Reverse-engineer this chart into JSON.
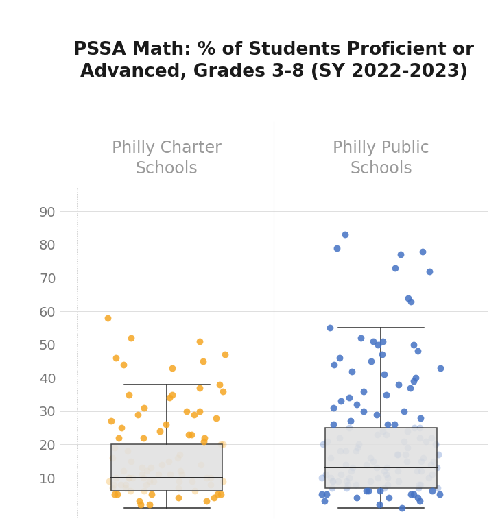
{
  "title_line1": "PSSA Math: % of Students Proficient or",
  "title_line2": "Advanced, Grades 3-8 (SY 2022-2023)",
  "col_labels": [
    "Philly Charter\nSchools",
    "Philly Public\nSchools"
  ],
  "charter_color": "#F5A623",
  "public_color": "#4472C4",
  "charter_box": {
    "q1": 6,
    "median": 10,
    "q3": 20,
    "whisker_low": 1,
    "whisker_high": 38
  },
  "public_box": {
    "q1": 7,
    "median": 13,
    "q3": 25,
    "whisker_low": 1,
    "whisker_high": 55
  },
  "ylim": [
    -2,
    97
  ],
  "yticks": [
    10,
    20,
    30,
    40,
    50,
    60,
    70,
    80,
    90
  ],
  "background": "#ffffff",
  "title_fontsize": 19,
  "label_fontsize": 17,
  "tick_fontsize": 14,
  "charter_data": [
    5,
    5,
    6,
    7,
    7,
    8,
    8,
    8,
    9,
    9,
    9,
    9,
    10,
    10,
    10,
    10,
    10,
    11,
    11,
    11,
    12,
    12,
    13,
    13,
    14,
    14,
    15,
    15,
    16,
    16,
    17,
    18,
    19,
    20,
    20,
    21,
    22,
    22,
    23,
    24,
    25,
    26,
    27,
    28,
    29,
    30,
    31,
    34,
    35,
    35,
    36,
    37,
    38,
    4,
    4,
    5,
    5,
    6,
    7,
    8,
    9,
    3,
    3,
    2,
    2,
    43,
    44,
    45,
    46,
    47,
    51,
    52,
    58,
    22,
    23,
    29,
    30,
    10,
    9,
    8,
    10,
    11,
    12,
    5,
    6
  ],
  "public_data": [
    1,
    2,
    3,
    3,
    4,
    4,
    4,
    5,
    5,
    5,
    5,
    5,
    6,
    6,
    6,
    6,
    7,
    7,
    7,
    7,
    7,
    8,
    8,
    8,
    8,
    8,
    9,
    9,
    9,
    9,
    9,
    9,
    10,
    10,
    10,
    10,
    10,
    10,
    11,
    11,
    11,
    11,
    12,
    12,
    12,
    12,
    12,
    13,
    13,
    13,
    13,
    14,
    14,
    14,
    15,
    15,
    15,
    15,
    16,
    16,
    16,
    17,
    17,
    17,
    17,
    18,
    18,
    18,
    19,
    19,
    20,
    20,
    20,
    21,
    21,
    21,
    22,
    22,
    22,
    23,
    23,
    24,
    24,
    25,
    25,
    26,
    26,
    27,
    28,
    29,
    30,
    30,
    31,
    32,
    33,
    34,
    35,
    36,
    37,
    38,
    39,
    40,
    41,
    42,
    43,
    44,
    45,
    46,
    47,
    48,
    50,
    51,
    52,
    55,
    64,
    63,
    73,
    72,
    79,
    83,
    78,
    77,
    51,
    50,
    25,
    26
  ],
  "grid_color": "#DEDEDE",
  "box_fill": "#E0E0E0",
  "box_edge": "#2a2a2a",
  "median_color": "#2a2a2a"
}
